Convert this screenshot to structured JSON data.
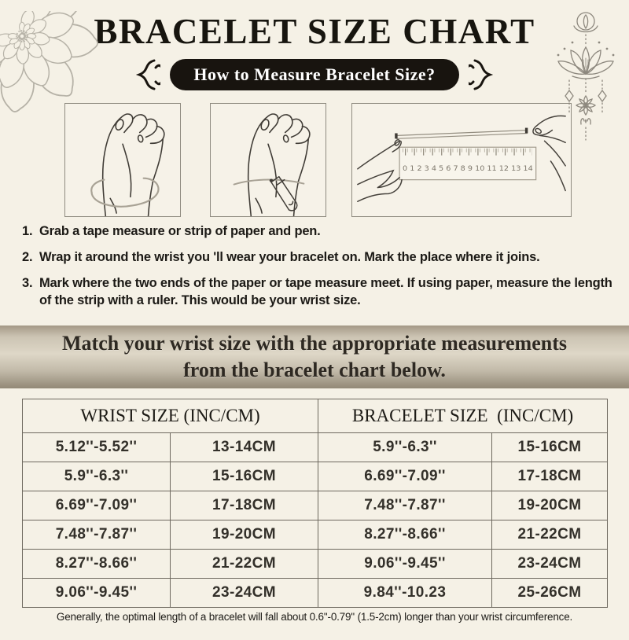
{
  "title": "BRACELET SIZE CHART",
  "pill_label": "How to Measure Bracelet Size?",
  "instructions": [
    {
      "num": "1.",
      "text": "Grab a tape measure or strip of paper and pen."
    },
    {
      "num": "2.",
      "text": "Wrap it around the wrist you 'll wear your bracelet on. Mark the place where it joins."
    },
    {
      "num": "3.",
      "text": "Mark where the two ends of the paper or tape measure meet. If using paper, measure the length of the strip with a ruler. This would be your wrist size."
    }
  ],
  "banner": {
    "line1": "Match your wrist size with the appropriate measurements",
    "line2": "from the bracelet chart below."
  },
  "size_table": {
    "headers": [
      "WRIST SIZE (INC/CM)",
      "BRACELET SIZE  (INC/CM)"
    ],
    "rows": [
      [
        "5.12''-5.52''",
        "13-14CM",
        "5.9''-6.3''",
        "15-16CM"
      ],
      [
        "5.9''-6.3''",
        "15-16CM",
        "6.69''-7.09''",
        "17-18CM"
      ],
      [
        "6.69''-7.09''",
        "17-18CM",
        "7.48''-7.87''",
        "19-20CM"
      ],
      [
        "7.48''-7.87''",
        "19-20CM",
        "8.27''-8.66''",
        "21-22CM"
      ],
      [
        "8.27''-8.66''",
        "21-22CM",
        "9.06''-9.45''",
        "23-24CM"
      ],
      [
        "9.06''-9.45''",
        "23-24CM",
        "9.84''-10.23",
        "25-26CM"
      ]
    ]
  },
  "footer": "Generally, the optimal length of a bracelet will fall about 0.6''-0.79'' (1.5-2cm) longer than your wrist circumference.",
  "illustrations": {
    "ruler_numbers": "0 1 2 3 4 5 6 7 8 9 10 11 12 13 14",
    "box1": "hand-with-tape-around-wrist",
    "box2": "hand-with-pen-marking-wrist",
    "box3": "measuring-strip-against-ruler"
  },
  "colors": {
    "background": "#f5f1e6",
    "pill_background": "#18140f",
    "pill_text": "#ffffff",
    "banner_center": "#ded7c7",
    "banner_edge": "#928876",
    "table_border": "#6e695f",
    "line_art": "#403c36",
    "ornament_gray": "#8d887e",
    "mandala_gray": "#b6b2a7"
  }
}
